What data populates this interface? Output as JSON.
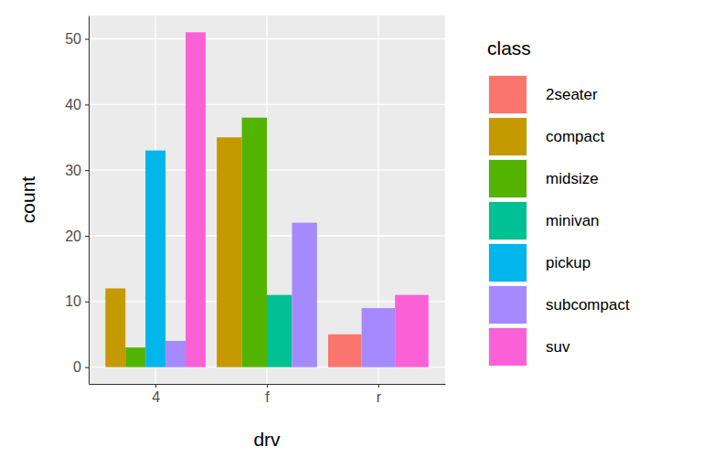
{
  "chart_data": {
    "type": "bar",
    "x_label": "drv",
    "y_label": "count",
    "legend_title": "class",
    "categories": [
      "4",
      "f",
      "r"
    ],
    "series": [
      {
        "name": "2seater",
        "color": "#F8766D",
        "values": [
          null,
          null,
          5
        ]
      },
      {
        "name": "compact",
        "color": "#C49A00",
        "values": [
          12,
          35,
          null
        ]
      },
      {
        "name": "midsize",
        "color": "#53B400",
        "values": [
          3,
          38,
          null
        ]
      },
      {
        "name": "minivan",
        "color": "#00C094",
        "values": [
          null,
          11,
          null
        ]
      },
      {
        "name": "pickup",
        "color": "#00B6EB",
        "values": [
          33,
          null,
          null
        ]
      },
      {
        "name": "subcompact",
        "color": "#A58AFF",
        "values": [
          4,
          22,
          9
        ]
      },
      {
        "name": "suv",
        "color": "#FB61D7",
        "values": [
          51,
          null,
          11
        ]
      }
    ],
    "ylim": [
      -2.55,
      53.55
    ],
    "yticks": [
      0,
      10,
      20,
      30,
      40,
      50
    ],
    "grid": true,
    "legend": "right"
  }
}
